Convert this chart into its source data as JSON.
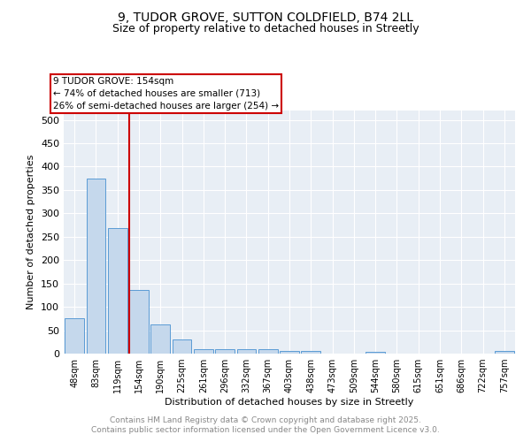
{
  "title1": "9, TUDOR GROVE, SUTTON COLDFIELD, B74 2LL",
  "title2": "Size of property relative to detached houses in Streetly",
  "xlabel": "Distribution of detached houses by size in Streetly",
  "ylabel": "Number of detached properties",
  "categories": [
    "48sqm",
    "83sqm",
    "119sqm",
    "154sqm",
    "190sqm",
    "225sqm",
    "261sqm",
    "296sqm",
    "332sqm",
    "367sqm",
    "403sqm",
    "438sqm",
    "473sqm",
    "509sqm",
    "544sqm",
    "580sqm",
    "615sqm",
    "651sqm",
    "686sqm",
    "722sqm",
    "757sqm"
  ],
  "values": [
    75,
    375,
    268,
    137,
    62,
    30,
    10,
    10,
    10,
    10,
    5,
    5,
    0,
    0,
    3,
    0,
    0,
    0,
    0,
    0,
    5
  ],
  "bar_color": "#c5d8ec",
  "bar_edge_color": "#5b9bd5",
  "redline_index": 3,
  "ylim": [
    0,
    520
  ],
  "yticks": [
    0,
    50,
    100,
    150,
    200,
    250,
    300,
    350,
    400,
    450,
    500
  ],
  "annotation_title": "9 TUDOR GROVE: 154sqm",
  "annotation_line1": "← 74% of detached houses are smaller (713)",
  "annotation_line2": "26% of semi-detached houses are larger (254) →",
  "annotation_box_color": "#cc0000",
  "fig_background": "#ffffff",
  "plot_background": "#e8eef5",
  "grid_color": "#ffffff",
  "footer1": "Contains HM Land Registry data © Crown copyright and database right 2025.",
  "footer2": "Contains public sector information licensed under the Open Government Licence v3.0.",
  "footer_color": "#888888"
}
